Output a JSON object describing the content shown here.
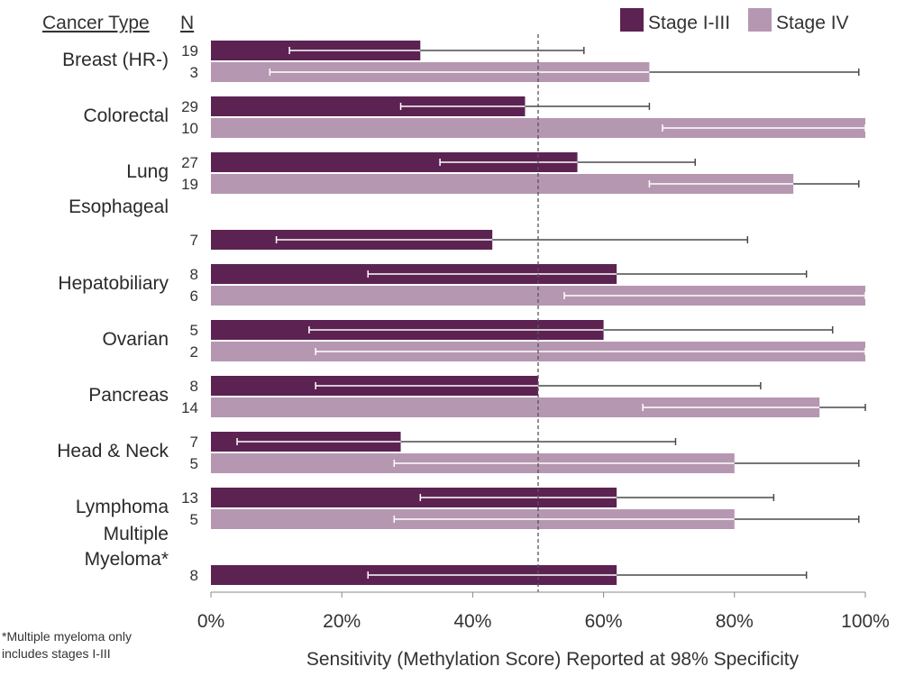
{
  "chart_data": {
    "type": "bar",
    "orientation": "horizontal",
    "column_headers": {
      "category": "Cancer Type",
      "n": "N"
    },
    "categories": [
      {
        "label": [
          "Breast (HR-)"
        ],
        "values": [
          32,
          67
        ],
        "n": [
          "19",
          "3"
        ],
        "ci_low": [
          12,
          9
        ],
        "ci_high": [
          57,
          99
        ]
      },
      {
        "label": [
          "Colorectal"
        ],
        "values": [
          48,
          100
        ],
        "n": [
          "29",
          "10"
        ],
        "ci_low": [
          29,
          69
        ],
        "ci_high": [
          67,
          100
        ]
      },
      {
        "label": [
          "Lung"
        ],
        "values": [
          56,
          89
        ],
        "n": [
          "27",
          "19"
        ],
        "ci_low": [
          35,
          67
        ],
        "ci_high": [
          74,
          99
        ]
      },
      {
        "label": [
          "Esophageal"
        ],
        "values": [
          43,
          null
        ],
        "n": [
          "7",
          null
        ],
        "ci_low": [
          10,
          null
        ],
        "ci_high": [
          82,
          null
        ]
      },
      {
        "label": [
          "Hepatobiliary"
        ],
        "values": [
          62,
          100
        ],
        "n": [
          "8",
          "6"
        ],
        "ci_low": [
          24,
          54
        ],
        "ci_high": [
          91,
          100
        ]
      },
      {
        "label": [
          "Ovarian"
        ],
        "values": [
          60,
          100
        ],
        "n": [
          "5",
          "2"
        ],
        "ci_low": [
          15,
          16
        ],
        "ci_high": [
          95,
          100
        ]
      },
      {
        "label": [
          "Pancreas"
        ],
        "values": [
          50,
          93
        ],
        "n": [
          "8",
          "14"
        ],
        "ci_low": [
          16,
          66
        ],
        "ci_high": [
          84,
          100
        ]
      },
      {
        "label": [
          "Head & Neck"
        ],
        "values": [
          29,
          80
        ],
        "n": [
          "7",
          "5"
        ],
        "ci_low": [
          4,
          28
        ],
        "ci_high": [
          71,
          99
        ]
      },
      {
        "label": [
          "Lymphoma"
        ],
        "values": [
          62,
          80
        ],
        "n": [
          "13",
          "5"
        ],
        "ci_low": [
          32,
          28
        ],
        "ci_high": [
          86,
          99
        ]
      },
      {
        "label": [
          "Multiple",
          "Myeloma*"
        ],
        "values": [
          62,
          null
        ],
        "n": [
          "8",
          null
        ],
        "ci_low": [
          24,
          null
        ],
        "ci_high": [
          91,
          null
        ]
      }
    ],
    "series": [
      {
        "name": "Stage I-III",
        "color": "#5c2352"
      },
      {
        "name": "Stage IV",
        "color": "#b697b1"
      }
    ],
    "xlabel": "Sensitivity (Methylation Score) Reported at 98% Specificity",
    "xlim": [
      0,
      100
    ],
    "xticks": [
      0,
      20,
      40,
      60,
      80,
      100
    ],
    "xtick_labels": [
      "0%",
      "20%",
      "40%",
      "60%",
      "80%",
      "100%"
    ],
    "reference_line": 50,
    "legend": "top-right",
    "grid": false,
    "footnote": [
      "*Multiple myeloma only",
      "includes stages I-III"
    ]
  }
}
